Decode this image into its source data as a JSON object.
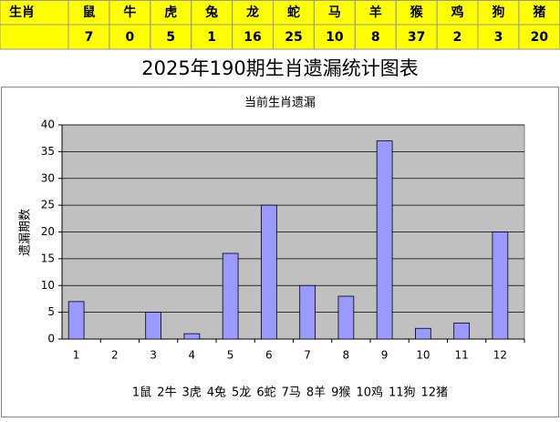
{
  "table": {
    "header": [
      "生肖",
      "鼠",
      "牛",
      "虎",
      "兔",
      "龙",
      "蛇",
      "马",
      "羊",
      "猴",
      "鸡",
      "狗",
      "猪"
    ],
    "row": [
      7,
      0,
      5,
      1,
      16,
      25,
      10,
      8,
      37,
      2,
      3,
      20
    ]
  },
  "title": "2025年190期生肖遗漏统计图表",
  "chart_data": {
    "type": "bar",
    "title": "当前生肖遗漏",
    "y_label": "遗漏期数",
    "categories": [
      "1",
      "2",
      "3",
      "4",
      "5",
      "6",
      "7",
      "8",
      "9",
      "10",
      "11",
      "12"
    ],
    "values": [
      7,
      0,
      5,
      1,
      16,
      25,
      10,
      8,
      37,
      2,
      3,
      20
    ],
    "color": "#9999ff",
    "ylim": [
      0,
      40
    ],
    "yticks": [
      0,
      5,
      10,
      15,
      20,
      25,
      30,
      35,
      40
    ],
    "grid": true,
    "legend_items": [
      "1鼠",
      "2牛",
      "3虎",
      "4兔",
      "5龙",
      "6蛇",
      "7马",
      "8羊",
      "9猴",
      "10鸡",
      "11狗",
      "12猪"
    ]
  }
}
